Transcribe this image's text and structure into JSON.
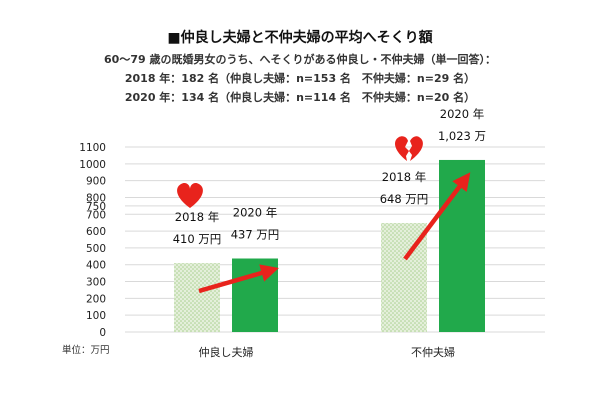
{
  "chart_data": {
    "type": "bar",
    "title": "■仲良し夫婦と不仲夫婦の平均へそくり額",
    "subtitle_lines": [
      "60～79 歳の既婚男女のうち、へそくりがある仲良し・不仲夫婦（単一回答）：",
      "2018 年：182 名（仲良し夫婦：n=153 名　不仲夫婦：n=29 名）",
      "2020 年：134 名（仲良し夫婦：n=114 名　不仲夫婦：n=20 名）"
    ],
    "unit_label": "単位：万円",
    "categories": [
      "仲良し夫婦",
      "不仲夫婦"
    ],
    "series": [
      {
        "name": "2018 年",
        "values": [
          410,
          648
        ],
        "data_labels": [
          "410 万円",
          "648 万円"
        ],
        "color": "#d8e8c9",
        "pattern": "dotted"
      },
      {
        "name": "2020 年",
        "values": [
          437,
          1023
        ],
        "data_labels": [
          "437 万円",
          "1,023 万"
        ],
        "color": "#21a94b",
        "pattern": "solid"
      }
    ],
    "ylim": [
      0,
      1100
    ],
    "yticks": [
      0,
      100,
      200,
      300,
      400,
      500,
      600,
      700,
      750,
      800,
      900,
      1000,
      1100
    ],
    "ytick_labels": [
      "0",
      "100",
      "200",
      "300",
      "400",
      "500",
      "600",
      "700",
      "750",
      "800",
      "900",
      "1000",
      "1100"
    ],
    "grid": true,
    "annotations": {
      "arrow_color": "#e8231c",
      "icons": [
        "heart-icon",
        "broken-heart-icon"
      ],
      "icon_color": "#e8231c"
    }
  }
}
